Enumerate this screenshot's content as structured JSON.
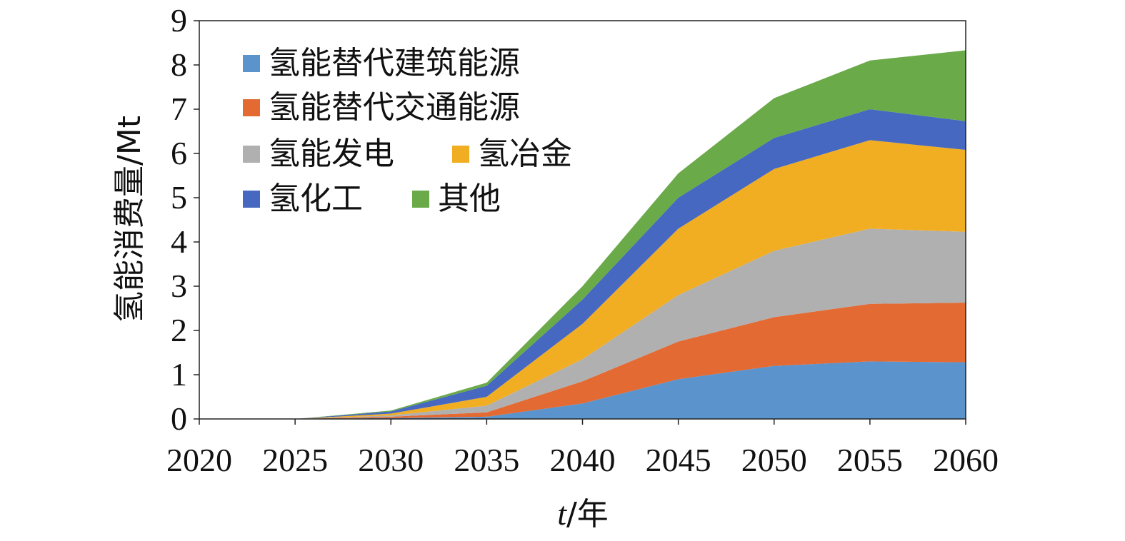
{
  "chart_data": {
    "type": "area",
    "stacked": true,
    "x": [
      2020,
      2025,
      2030,
      2035,
      2040,
      2045,
      2050,
      2055,
      2060
    ],
    "xlabel_var": "t",
    "xlabel_unit": "/年",
    "ylabel": "氢能消费量/Mt",
    "xlim": [
      2020,
      2060
    ],
    "ylim": [
      0,
      9
    ],
    "yticks": [
      "0",
      "1",
      "2",
      "3",
      "4",
      "5",
      "6",
      "7",
      "8",
      "9"
    ],
    "xticks": [
      "2020",
      "2025",
      "2030",
      "2035",
      "2040",
      "2045",
      "2050",
      "2055",
      "2060"
    ],
    "grid": false,
    "legend_position": "top-left",
    "series": [
      {
        "name": "氢能替代建筑能源",
        "color": "#5B93CC",
        "values": [
          0,
          0,
          0.02,
          0.05,
          0.35,
          0.9,
          1.2,
          1.3,
          1.28
        ]
      },
      {
        "name": "氢能替代交通能源",
        "color": "#E36A33",
        "values": [
          0,
          0,
          0.03,
          0.1,
          0.5,
          0.85,
          1.1,
          1.3,
          1.35
        ]
      },
      {
        "name": "氢能发电",
        "color": "#B0B0B0",
        "values": [
          0,
          0,
          0.03,
          0.15,
          0.5,
          1.05,
          1.5,
          1.7,
          1.6
        ]
      },
      {
        "name": "氢冶金",
        "color": "#F2AE22",
        "values": [
          0,
          0,
          0.04,
          0.2,
          0.8,
          1.5,
          1.85,
          2.0,
          1.85
        ]
      },
      {
        "name": "氢化工",
        "color": "#4668C1",
        "values": [
          0,
          0,
          0.05,
          0.25,
          0.55,
          0.7,
          0.7,
          0.7,
          0.65
        ]
      },
      {
        "name": "其他",
        "color": "#6AAA48",
        "values": [
          0,
          0,
          0.02,
          0.07,
          0.3,
          0.55,
          0.9,
          1.1,
          1.6
        ]
      }
    ]
  }
}
